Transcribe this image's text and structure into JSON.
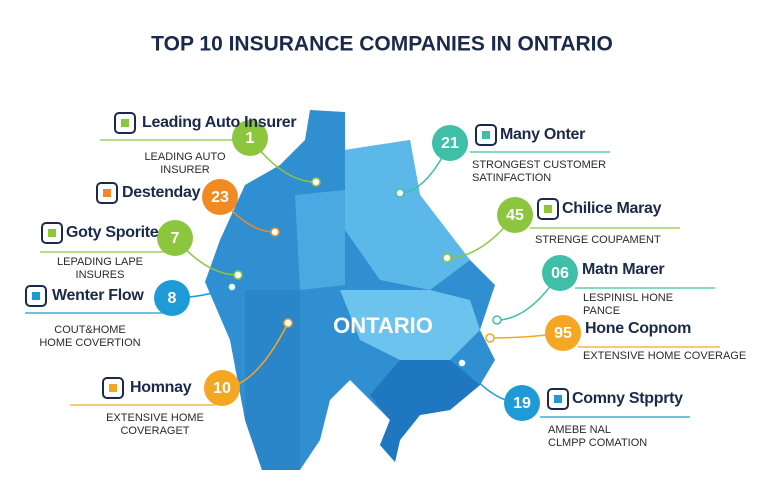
{
  "title": "TOP 10 INSURANCE COMPANIES IN ONTARIO",
  "map_label": "ONTARIO",
  "callouts": [
    {
      "name": "Leading Auto Insurer",
      "number": "1",
      "color": "#8cc63f",
      "description": [
        "LEADING AUTO",
        "INSURER"
      ]
    },
    {
      "name": "Destenday",
      "number": "23",
      "color": "#f08a24",
      "description": []
    },
    {
      "name": "Goty Sporite",
      "number": "7",
      "color": "#8cc63f",
      "description": [
        "LEPADING LAPE",
        "INSURES"
      ]
    },
    {
      "name": "Wenter Flow",
      "number": "8",
      "color": "#1e9bd7",
      "description": [
        "COUT&HOME",
        "HOME COVERTION"
      ]
    },
    {
      "name": "Homnay",
      "number": "10",
      "color": "#f5a623",
      "description": [
        "EXTENSIVE HOME",
        "COVERAGET"
      ]
    },
    {
      "name": "Many Onter",
      "number": "21",
      "color": "#3fbfa8",
      "description": [
        "STRONGEST CUSTOMER",
        "SATINFACTION"
      ]
    },
    {
      "name": "Chilice Maray",
      "number": "45",
      "color": "#8cc63f",
      "description": [
        "STRENGE COUPAMENT"
      ]
    },
    {
      "name": "Matn Marer",
      "number": "06",
      "color": "#3fbfa8",
      "description": [
        "LESPINISL HONE",
        "PANCE"
      ]
    },
    {
      "name": "Hone Copnom",
      "number": "95",
      "color": "#f5a623",
      "description": [
        "EXTENSIVE HOME COVERAGE"
      ]
    },
    {
      "name": "Comny Stpprty",
      "number": "19",
      "color": "#1e9bd7",
      "description": [
        "AMEBE NAL",
        "CLMPP COMATION"
      ]
    }
  ]
}
